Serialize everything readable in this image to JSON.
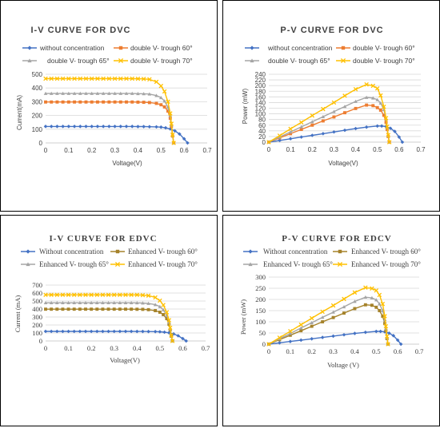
{
  "chart_data": [
    {
      "type": "line",
      "title": "I-V CURVE FOR DVC",
      "xlabel": "Voltage(V)",
      "ylabel": "Current(mA)",
      "xlim": [
        0,
        0.7
      ],
      "ylim": [
        0,
        500
      ],
      "xticks": [
        "0",
        "0.1",
        "0.2",
        "0.3",
        "0.4",
        "0.5",
        "0.6",
        "0.7"
      ],
      "yticks": [
        "0",
        "100",
        "200",
        "300",
        "400",
        "500"
      ],
      "grid": "horizontal",
      "legend_position": "top",
      "series": [
        {
          "name": "without concentration",
          "color": "#4472C4",
          "marker": "diamond",
          "x": [
            0,
            0.025,
            0.05,
            0.075,
            0.1,
            0.125,
            0.15,
            0.175,
            0.2,
            0.225,
            0.25,
            0.275,
            0.3,
            0.325,
            0.35,
            0.375,
            0.4,
            0.425,
            0.45,
            0.48,
            0.5,
            0.52,
            0.54,
            0.56,
            0.58,
            0.6,
            0.615
          ],
          "y": [
            120,
            120,
            120,
            120,
            120,
            120,
            120,
            120,
            120,
            120,
            120,
            120,
            120,
            120,
            120,
            120,
            119,
            119,
            118,
            117,
            115,
            110,
            102,
            88,
            65,
            30,
            0
          ]
        },
        {
          "name": "double V- trough 60°",
          "color": "#ED7D31",
          "marker": "square",
          "x": [
            0,
            0.025,
            0.05,
            0.075,
            0.1,
            0.125,
            0.15,
            0.175,
            0.2,
            0.225,
            0.25,
            0.275,
            0.3,
            0.325,
            0.35,
            0.375,
            0.4,
            0.425,
            0.45,
            0.48,
            0.5,
            0.515,
            0.53,
            0.54,
            0.545,
            0.55,
            0.555
          ],
          "y": [
            298,
            298,
            298,
            298,
            298,
            298,
            298,
            298,
            298,
            298,
            298,
            298,
            298,
            298,
            298,
            298,
            297,
            296,
            294,
            288,
            278,
            262,
            232,
            180,
            120,
            50,
            0
          ]
        },
        {
          "name": "double V- trough 65°",
          "color": "#A5A5A5",
          "marker": "triangle",
          "x": [
            0,
            0.025,
            0.05,
            0.075,
            0.1,
            0.125,
            0.15,
            0.175,
            0.2,
            0.225,
            0.25,
            0.275,
            0.3,
            0.325,
            0.35,
            0.375,
            0.4,
            0.425,
            0.45,
            0.48,
            0.5,
            0.515,
            0.53,
            0.54,
            0.545,
            0.55,
            0.555
          ],
          "y": [
            360,
            360,
            360,
            360,
            360,
            360,
            360,
            360,
            360,
            360,
            360,
            360,
            360,
            360,
            360,
            360,
            359,
            358,
            356,
            345,
            330,
            305,
            260,
            200,
            130,
            55,
            0
          ]
        },
        {
          "name": "double V- trough 70°",
          "color": "#FFC000",
          "marker": "x",
          "x": [
            0,
            0.025,
            0.05,
            0.075,
            0.1,
            0.125,
            0.15,
            0.175,
            0.2,
            0.225,
            0.25,
            0.275,
            0.3,
            0.325,
            0.35,
            0.375,
            0.4,
            0.425,
            0.45,
            0.48,
            0.5,
            0.515,
            0.53,
            0.54,
            0.545,
            0.55,
            0.555
          ],
          "y": [
            468,
            468,
            468,
            468,
            468,
            468,
            468,
            468,
            468,
            468,
            468,
            468,
            468,
            468,
            468,
            468,
            467,
            466,
            463,
            445,
            415,
            375,
            300,
            215,
            140,
            60,
            0
          ]
        }
      ]
    },
    {
      "type": "line",
      "title": "P-V CURVE FOR DVC",
      "xlabel": "Voltage(V)",
      "ylabel": "Power (mW)",
      "xlim": [
        0,
        0.7
      ],
      "ylim": [
        0,
        240
      ],
      "xticks": [
        "0",
        "0.1",
        "0.2",
        "0.3",
        "0.4",
        "0.5",
        "0.6",
        "0.7"
      ],
      "yticks": [
        "0",
        "20",
        "40",
        "60",
        "80",
        "100",
        "120",
        "140",
        "160",
        "180",
        "200",
        "220",
        "240"
      ],
      "grid": "horizontal",
      "legend_position": "top",
      "series": [
        {
          "name": "without concentration",
          "color": "#4472C4",
          "marker": "diamond",
          "x": [
            0,
            0.05,
            0.1,
            0.15,
            0.2,
            0.25,
            0.3,
            0.35,
            0.4,
            0.45,
            0.5,
            0.52,
            0.54,
            0.56,
            0.58,
            0.6,
            0.615
          ],
          "y": [
            0,
            6,
            12,
            18,
            24,
            30,
            36,
            42,
            48,
            53,
            57,
            57,
            55,
            49,
            38,
            18,
            0
          ]
        },
        {
          "name": "double V- trough 60°",
          "color": "#ED7D31",
          "marker": "square",
          "x": [
            0,
            0.05,
            0.1,
            0.15,
            0.2,
            0.25,
            0.3,
            0.35,
            0.4,
            0.45,
            0.48,
            0.5,
            0.515,
            0.53,
            0.54,
            0.545,
            0.55,
            0.555
          ],
          "y": [
            0,
            15,
            30,
            45,
            60,
            75,
            89,
            104,
            119,
            131,
            129,
            122,
            113,
            95,
            70,
            45,
            20,
            0
          ]
        },
        {
          "name": "double V- trough 65°",
          "color": "#A5A5A5",
          "marker": "triangle",
          "x": [
            0,
            0.05,
            0.1,
            0.15,
            0.2,
            0.25,
            0.3,
            0.35,
            0.4,
            0.45,
            0.48,
            0.5,
            0.515,
            0.53,
            0.54,
            0.545,
            0.55,
            0.555
          ],
          "y": [
            0,
            18,
            36,
            54,
            72,
            90,
            108,
            126,
            144,
            158,
            156,
            150,
            138,
            115,
            82,
            52,
            22,
            0
          ]
        },
        {
          "name": "double V- trough 70°",
          "color": "#FFC000",
          "marker": "x",
          "x": [
            0,
            0.05,
            0.1,
            0.15,
            0.2,
            0.25,
            0.3,
            0.35,
            0.4,
            0.45,
            0.48,
            0.5,
            0.515,
            0.53,
            0.54,
            0.545,
            0.55,
            0.555
          ],
          "y": [
            0,
            23,
            47,
            70,
            94,
            117,
            140,
            164,
            187,
            204,
            199,
            190,
            165,
            125,
            85,
            55,
            25,
            0
          ]
        }
      ]
    },
    {
      "type": "line",
      "title": "I-V CURVE FOR EDVC",
      "xlabel": "Voltage(V)",
      "ylabel": "Current (mA)",
      "xlim": [
        0,
        0.7
      ],
      "ylim": [
        0,
        700
      ],
      "xticks": [
        "0",
        "0.1",
        "0.2",
        "0.3",
        "0.4",
        "0.5",
        "0.6",
        "0.7"
      ],
      "yticks": [
        "0",
        "100",
        "200",
        "300",
        "400",
        "500",
        "600",
        "700"
      ],
      "grid": "horizontal",
      "legend_position": "top",
      "series": [
        {
          "name": "Without concentration",
          "color": "#4472C4",
          "marker": "diamond",
          "x": [
            0,
            0.025,
            0.05,
            0.075,
            0.1,
            0.125,
            0.15,
            0.175,
            0.2,
            0.225,
            0.25,
            0.275,
            0.3,
            0.325,
            0.35,
            0.375,
            0.4,
            0.425,
            0.45,
            0.48,
            0.5,
            0.52,
            0.54,
            0.56,
            0.58,
            0.6,
            0.615
          ],
          "y": [
            120,
            120,
            120,
            120,
            120,
            120,
            120,
            120,
            120,
            120,
            120,
            120,
            120,
            120,
            120,
            120,
            119,
            119,
            118,
            117,
            115,
            110,
            102,
            88,
            65,
            30,
            0
          ]
        },
        {
          "name": "Enhanced V- trough 60°",
          "color": "#A5822A",
          "marker": "square",
          "x": [
            0,
            0.025,
            0.05,
            0.075,
            0.1,
            0.125,
            0.15,
            0.175,
            0.2,
            0.225,
            0.25,
            0.275,
            0.3,
            0.325,
            0.35,
            0.375,
            0.4,
            0.425,
            0.45,
            0.48,
            0.5,
            0.515,
            0.53,
            0.54,
            0.545,
            0.55,
            0.555
          ],
          "y": [
            398,
            398,
            398,
            398,
            398,
            398,
            398,
            398,
            398,
            398,
            398,
            398,
            398,
            398,
            398,
            398,
            397,
            396,
            392,
            380,
            360,
            330,
            280,
            210,
            140,
            60,
            0
          ]
        },
        {
          "name": "Enhanced V- trough 65°",
          "color": "#A5A5A5",
          "marker": "triangle",
          "x": [
            0,
            0.025,
            0.05,
            0.075,
            0.1,
            0.125,
            0.15,
            0.175,
            0.2,
            0.225,
            0.25,
            0.275,
            0.3,
            0.325,
            0.35,
            0.375,
            0.4,
            0.425,
            0.45,
            0.48,
            0.5,
            0.515,
            0.53,
            0.54,
            0.545,
            0.55,
            0.555
          ],
          "y": [
            478,
            478,
            478,
            478,
            478,
            478,
            478,
            478,
            478,
            478,
            478,
            478,
            478,
            478,
            478,
            478,
            477,
            475,
            470,
            455,
            430,
            390,
            320,
            235,
            150,
            65,
            0
          ]
        },
        {
          "name": "Enhanced V- trough 70°",
          "color": "#FFC000",
          "marker": "x",
          "x": [
            0,
            0.025,
            0.05,
            0.075,
            0.1,
            0.125,
            0.15,
            0.175,
            0.2,
            0.225,
            0.25,
            0.275,
            0.3,
            0.325,
            0.35,
            0.375,
            0.4,
            0.425,
            0.45,
            0.48,
            0.5,
            0.515,
            0.53,
            0.54,
            0.545,
            0.55,
            0.555
          ],
          "y": [
            578,
            578,
            578,
            578,
            578,
            578,
            578,
            578,
            578,
            578,
            578,
            578,
            578,
            578,
            578,
            578,
            577,
            574,
            568,
            545,
            505,
            450,
            360,
            260,
            165,
            70,
            0
          ]
        }
      ]
    },
    {
      "type": "line",
      "title": "P-V CURVE FOR EDCV",
      "xlabel": "Voltage (V)",
      "ylabel": "Power (mW)",
      "xlim": [
        0,
        0.7
      ],
      "ylim": [
        0,
        300
      ],
      "xticks": [
        "0",
        "0.1",
        "0.2",
        "0.3",
        "0.4",
        "0.5",
        "0.6",
        "0.7"
      ],
      "yticks": [
        "0",
        "50",
        "100",
        "150",
        "200",
        "250",
        "300"
      ],
      "grid": "horizontal",
      "legend_position": "top",
      "series": [
        {
          "name": "Without concentration",
          "color": "#4472C4",
          "marker": "diamond",
          "x": [
            0,
            0.05,
            0.1,
            0.15,
            0.2,
            0.25,
            0.3,
            0.35,
            0.4,
            0.45,
            0.5,
            0.52,
            0.54,
            0.56,
            0.58,
            0.6,
            0.615
          ],
          "y": [
            0,
            6,
            12,
            18,
            24,
            30,
            36,
            42,
            48,
            53,
            57,
            57,
            55,
            49,
            38,
            18,
            0
          ]
        },
        {
          "name": "Enhanced V- trough 60°",
          "color": "#A5822A",
          "marker": "square",
          "x": [
            0,
            0.05,
            0.1,
            0.15,
            0.2,
            0.25,
            0.3,
            0.35,
            0.4,
            0.45,
            0.48,
            0.5,
            0.515,
            0.53,
            0.54,
            0.545,
            0.55,
            0.555
          ],
          "y": [
            0,
            20,
            40,
            60,
            80,
            100,
            119,
            139,
            159,
            176,
            174,
            165,
            150,
            125,
            92,
            60,
            25,
            0
          ]
        },
        {
          "name": "Enhanced V- trough 65°",
          "color": "#A5A5A5",
          "marker": "triangle",
          "x": [
            0,
            0.05,
            0.1,
            0.15,
            0.2,
            0.25,
            0.3,
            0.35,
            0.4,
            0.45,
            0.48,
            0.5,
            0.515,
            0.53,
            0.54,
            0.545,
            0.55,
            0.555
          ],
          "y": [
            0,
            24,
            48,
            72,
            96,
            120,
            143,
            167,
            191,
            210,
            207,
            198,
            180,
            150,
            110,
            70,
            30,
            0
          ]
        },
        {
          "name": "Enhanced V- trough 70°",
          "color": "#FFC000",
          "marker": "x",
          "x": [
            0,
            0.05,
            0.1,
            0.15,
            0.2,
            0.25,
            0.3,
            0.35,
            0.4,
            0.45,
            0.48,
            0.5,
            0.515,
            0.53,
            0.54,
            0.545,
            0.55,
            0.555
          ],
          "y": [
            0,
            29,
            58,
            87,
            116,
            145,
            173,
            202,
            231,
            253,
            249,
            240,
            220,
            180,
            125,
            80,
            35,
            0
          ]
        }
      ]
    }
  ]
}
